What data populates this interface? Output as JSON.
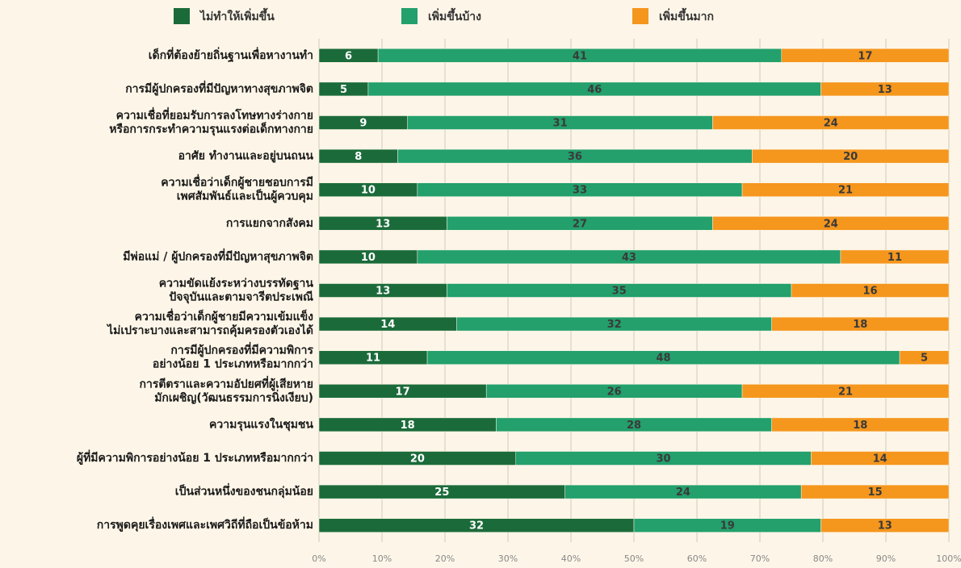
{
  "chart_data": {
    "type": "bar",
    "orientation": "horizontal",
    "stacked": "percent",
    "categories": [
      "เด็กที่ต้องย้ายถิ่นฐานเพื่อหางานทำ",
      "การมีผู้ปกครองที่มีปัญหาทางสุขภาพจิต",
      "ความเชื่อที่ยอมรับการลงโทษทางร่างกาย\nหรือการกระทำความรุนแรงต่อเด็กทางกาย",
      "อาศัย ทำงานและอยู่บนถนน",
      "ความเชื่อว่าเด็กผู้ชายชอบการมี\nเพศสัมพันธ์และเป็นผู้ควบคุม",
      "การแยกจากสังคม",
      "มีพ่อแม่ / ผู้ปกครองที่มีปัญหาสุขภาพจิต",
      "ความขัดแย้งระหว่างบรรทัดฐาน\nปัจจุบันและตามจารีตประเพณี",
      "ความเชื่อว่าเด็กผู้ชายมีความเข้มแข็ง\nไม่เปราะบางและสามารถคุ้มครองตัวเองได้",
      "การมีผู้ปกครองที่มีความพิการ\nอย่างน้อย 1 ประเภทหรือมากกว่า",
      "การตีตราและความอัปยศที่ผู้เสียหาย\nมักเผชิญ(วัฒนธรรมการนิ่งเงียบ)",
      "ความรุนแรงในชุมชน",
      "ผู้ที่มีความพิการอย่างน้อย 1 ประเภทหรือมากกว่า",
      "เป็นส่วนหนึ่งของชนกลุ่มน้อย",
      "การพูดคุยเรื่องเพศและเพศวิถีที่ถือเป็นข้อห้าม"
    ],
    "series": [
      {
        "name": "ไม่ทำให้เพิ่มขึ้น",
        "color": "#1b6b3a",
        "values": [
          6,
          5,
          9,
          8,
          10,
          13,
          10,
          13,
          14,
          11,
          17,
          18,
          20,
          25,
          32
        ]
      },
      {
        "name": "เพิ่มขึ้นบ้าง",
        "color": "#23a06c",
        "values": [
          41,
          46,
          31,
          36,
          33,
          27,
          43,
          35,
          32,
          48,
          26,
          28,
          30,
          24,
          19
        ]
      },
      {
        "name": "เพิ่มขึ้นมาก",
        "color": "#f5961d",
        "values": [
          17,
          13,
          24,
          20,
          21,
          24,
          11,
          16,
          18,
          5,
          21,
          18,
          14,
          15,
          13
        ]
      }
    ],
    "xlim": [
      0,
      100
    ],
    "xticks": [
      {
        "value": 0,
        "label": "0%"
      },
      {
        "value": 10,
        "label": "10%"
      },
      {
        "value": 20,
        "label": "20%"
      },
      {
        "value": 30,
        "label": "30%"
      },
      {
        "value": 40,
        "label": "40%"
      },
      {
        "value": 50,
        "label": "50%"
      },
      {
        "value": 60,
        "label": "60%"
      },
      {
        "value": 70,
        "label": "70%"
      },
      {
        "value": 80,
        "label": "80%"
      },
      {
        "value": 90,
        "label": "90%"
      },
      {
        "value": 100,
        "label": "100%"
      }
    ],
    "grid": true,
    "legend": "top"
  }
}
